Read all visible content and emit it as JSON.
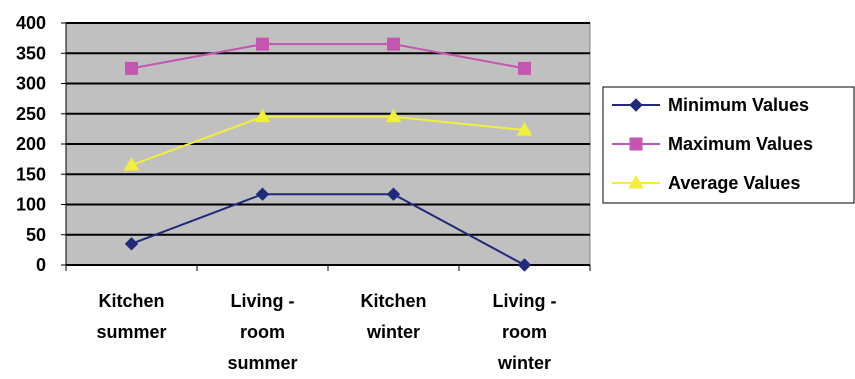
{
  "chart_data": {
    "type": "line",
    "categories": [
      [
        "Kitchen",
        "summer"
      ],
      [
        "Living -",
        "room",
        "summer"
      ],
      [
        "Kitchen",
        "winter"
      ],
      [
        "Living -",
        "room",
        "winter"
      ]
    ],
    "series": [
      {
        "name": "Minimum Values",
        "values": [
          35,
          117,
          117,
          0
        ],
        "color": "#1f2a7a",
        "marker": "diamond"
      },
      {
        "name": "Maximum Values",
        "values": [
          325,
          365,
          365,
          325
        ],
        "color": "#c455b0",
        "marker": "square"
      },
      {
        "name": "Average Values",
        "values": [
          165,
          245,
          245,
          223
        ],
        "color": "#f2ee3c",
        "marker": "triangle"
      }
    ],
    "yticks": [
      "0",
      "50",
      "100",
      "150",
      "200",
      "250",
      "300",
      "350",
      "400"
    ],
    "ylim": [
      0,
      400
    ],
    "plot_background": "#c0c0c0",
    "grid": true,
    "legend_position": "right"
  }
}
